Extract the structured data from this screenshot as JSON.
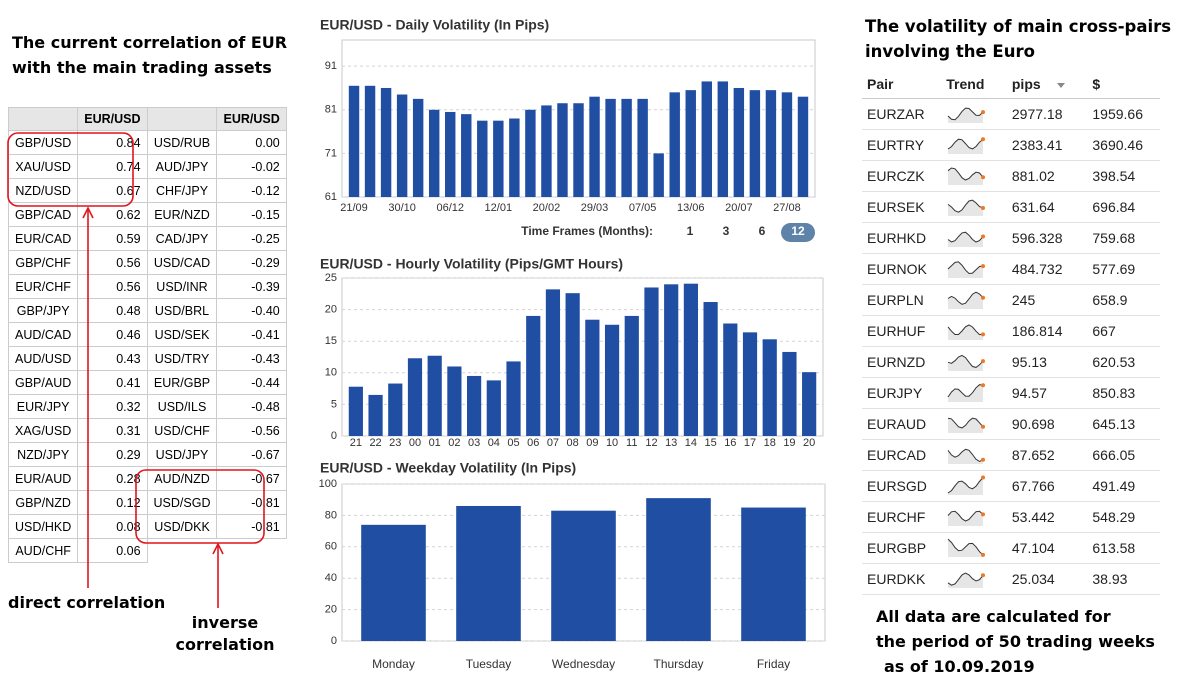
{
  "left": {
    "title_lines": [
      "The current correlation of EUR",
      "with the main trading assets"
    ],
    "header": [
      "EUR/USD",
      "EUR/USD"
    ],
    "rows1": [
      [
        "GBP/USD",
        "0.84"
      ],
      [
        "XAU/USD",
        "0.74"
      ],
      [
        "NZD/USD",
        "0.67"
      ],
      [
        "GBP/CAD",
        "0.62"
      ],
      [
        "EUR/CAD",
        "0.59"
      ],
      [
        "GBP/CHF",
        "0.56"
      ],
      [
        "EUR/CHF",
        "0.56"
      ],
      [
        "GBP/JPY",
        "0.48"
      ],
      [
        "AUD/CAD",
        "0.46"
      ],
      [
        "AUD/USD",
        "0.43"
      ],
      [
        "GBP/AUD",
        "0.41"
      ],
      [
        "EUR/JPY",
        "0.32"
      ],
      [
        "XAG/USD",
        "0.31"
      ],
      [
        "NZD/JPY",
        "0.29"
      ],
      [
        "EUR/AUD",
        "0.28"
      ],
      [
        "GBP/NZD",
        "0.12"
      ],
      [
        "USD/HKD",
        "0.08"
      ],
      [
        "AUD/CHF",
        "0.06"
      ]
    ],
    "rows2": [
      [
        "USD/RUB",
        "0.00"
      ],
      [
        "AUD/JPY",
        "-0.02"
      ],
      [
        "CHF/JPY",
        "-0.12"
      ],
      [
        "EUR/NZD",
        "-0.15"
      ],
      [
        "CAD/JPY",
        "-0.25"
      ],
      [
        "USD/CAD",
        "-0.29"
      ],
      [
        "USD/INR",
        "-0.39"
      ],
      [
        "USD/BRL",
        "-0.40"
      ],
      [
        "USD/SEK",
        "-0.41"
      ],
      [
        "USD/TRY",
        "-0.43"
      ],
      [
        "EUR/GBP",
        "-0.44"
      ],
      [
        "USD/ILS",
        "-0.48"
      ],
      [
        "USD/CHF",
        "-0.56"
      ],
      [
        "USD/JPY",
        "-0.67"
      ],
      [
        "AUD/NZD",
        "-0.67"
      ],
      [
        "USD/SGD",
        "-0.81"
      ],
      [
        "USD/DKK",
        "-0.81"
      ]
    ],
    "direct_label": "direct correlation",
    "inverse_label_lines": [
      "inverse",
      "correlation"
    ]
  },
  "chart_data": [
    {
      "type": "bar",
      "title": "EUR/USD - Daily Volatility (In Pips)",
      "color": "#1f4ea3",
      "categories": [
        "21/09",
        null,
        null,
        "30/10",
        null,
        null,
        "06/12",
        null,
        null,
        "12/01",
        null,
        null,
        "20/02",
        null,
        null,
        "29/03",
        null,
        null,
        "07/05",
        null,
        null,
        "13/06",
        null,
        null,
        "20/07",
        null,
        null,
        "27/08",
        null
      ],
      "values": [
        86.5,
        86.5,
        86,
        84.5,
        83.5,
        81,
        80.5,
        80,
        78.5,
        78.5,
        79,
        81,
        82,
        82.5,
        82.5,
        84,
        83.5,
        83.5,
        83.5,
        71,
        85,
        85.5,
        87.5,
        87.5,
        86,
        85.5,
        85.5,
        85,
        84
      ],
      "ylim": [
        61,
        97
      ],
      "yticks": [
        61,
        71,
        81,
        91
      ],
      "grid": true
    },
    {
      "type": "bar",
      "title": "EUR/USD - Hourly Volatility (Pips/GMT Hours)",
      "color": "#1f4ea3",
      "categories": [
        "21",
        "22",
        "23",
        "00",
        "01",
        "02",
        "03",
        "04",
        "05",
        "06",
        "07",
        "08",
        "09",
        "10",
        "11",
        "12",
        "13",
        "14",
        "15",
        "16",
        "17",
        "18",
        "19",
        "20"
      ],
      "values": [
        7.8,
        6.5,
        8.3,
        12.3,
        12.7,
        11,
        9.5,
        8.8,
        11.8,
        19,
        23.2,
        22.6,
        18.4,
        17.6,
        19,
        23.5,
        24,
        24.1,
        21.2,
        17.8,
        16.4,
        15.3,
        13.3,
        10.1
      ],
      "ylim": [
        0,
        25
      ],
      "yticks": [
        0,
        5,
        10,
        15,
        20,
        25
      ],
      "grid": true
    },
    {
      "type": "bar",
      "title": "EUR/USD - Weekday Volatility (In Pips)",
      "color": "#1f4ea3",
      "categories": [
        "Monday",
        "Tuesday",
        "Wednesday",
        "Thursday",
        "Friday"
      ],
      "values": [
        74,
        86,
        83,
        91,
        85
      ],
      "ylim": [
        0,
        100
      ],
      "yticks": [
        0,
        20,
        40,
        60,
        80,
        100
      ],
      "grid": true
    }
  ],
  "time_frames": {
    "label": "Time Frames (Months):",
    "options": [
      1,
      3,
      6,
      12
    ],
    "selected_index": 3
  },
  "right": {
    "title_lines": [
      "The volatility of main cross-pairs",
      "involving the Euro"
    ],
    "columns": [
      "Pair",
      "Trend",
      "pips",
      "$"
    ],
    "rows": [
      [
        "EURZAR",
        "2977.18",
        "1959.66"
      ],
      [
        "EURTRY",
        "2383.41",
        "3690.46"
      ],
      [
        "EURCZK",
        "881.02",
        "398.54"
      ],
      [
        "EURSEK",
        "631.64",
        "696.84"
      ],
      [
        "EURHKD",
        "596.328",
        "759.68"
      ],
      [
        "EURNOK",
        "484.732",
        "577.69"
      ],
      [
        "EURPLN",
        "245",
        "658.9"
      ],
      [
        "EURHUF",
        "186.814",
        "667"
      ],
      [
        "EURNZD",
        "95.13",
        "620.53"
      ],
      [
        "EURJPY",
        "94.57",
        "850.83"
      ],
      [
        "EURAUD",
        "90.698",
        "645.13"
      ],
      [
        "EURCAD",
        "87.652",
        "666.05"
      ],
      [
        "EURSGD",
        "67.766",
        "491.49"
      ],
      [
        "EURCHF",
        "53.442",
        "548.29"
      ],
      [
        "EURGBP",
        "47.104",
        "613.58"
      ],
      [
        "EURDKK",
        "25.034",
        "38.93"
      ]
    ],
    "footnote_lines": [
      "All data are calculated for",
      "the period of 50 trading weeks",
      "as of 10.09.2019"
    ]
  }
}
